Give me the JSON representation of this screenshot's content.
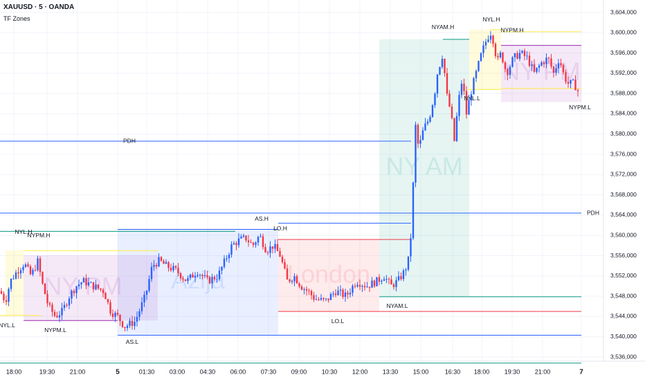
{
  "header": {
    "title": "XAUUSD · 5 · OANDA",
    "indicator": "TF Zones"
  },
  "chart_data": {
    "type": "candlestick",
    "symbol": "XAUUSD",
    "interval": "5",
    "source": "OANDA",
    "ylim": [
      3534,
      3607
    ],
    "y_ticks": [
      "3,536,000",
      "3,540,000",
      "3,544,000",
      "3,548,000",
      "3,552,000",
      "3,556,000",
      "3,560,000",
      "3,564,000",
      "3,568,000",
      "3,572,000",
      "3,576,000",
      "3,580,000",
      "3,584,000",
      "3,588,000",
      "3,592,000",
      "3,596,000",
      "3,600,000",
      "3,604,000"
    ],
    "x_ticks": [
      "18:00",
      "19:30",
      "21:00",
      "5",
      "01:30",
      "03:00",
      "04:30",
      "06:00",
      "07:30",
      "09:00",
      "10:30",
      "12:00",
      "13:30",
      "15:00",
      "16:30",
      "18:00",
      "19:30",
      "21:00",
      "7"
    ],
    "bold_x_ticks": [
      "5",
      "7"
    ],
    "colors": {
      "up": "#2962ff",
      "down": "#f23645",
      "grid": "#f0f3fa",
      "axis_text": "#131722"
    },
    "price_path": [
      [
        0,
        3549
      ],
      [
        8,
        3547
      ],
      [
        15,
        3551
      ],
      [
        25,
        3553
      ],
      [
        35,
        3554.5
      ],
      [
        45,
        3552
      ],
      [
        55,
        3555
      ],
      [
        60,
        3551
      ],
      [
        70,
        3546
      ],
      [
        80,
        3544
      ],
      [
        90,
        3545
      ],
      [
        100,
        3548
      ],
      [
        110,
        3550
      ],
      [
        120,
        3551
      ],
      [
        135,
        3550
      ],
      [
        150,
        3549
      ],
      [
        160,
        3545
      ],
      [
        170,
        3544
      ],
      [
        180,
        3542
      ],
      [
        195,
        3543
      ],
      [
        210,
        3548
      ],
      [
        220,
        3554
      ],
      [
        230,
        3555
      ],
      [
        240,
        3554
      ],
      [
        255,
        3553
      ],
      [
        270,
        3551
      ],
      [
        285,
        3553
      ],
      [
        300,
        3551
      ],
      [
        315,
        3552
      ],
      [
        325,
        3555
      ],
      [
        335,
        3558
      ],
      [
        345,
        3559
      ],
      [
        355,
        3559.5
      ],
      [
        365,
        3558
      ],
      [
        375,
        3560
      ],
      [
        385,
        3557
      ],
      [
        395,
        3558
      ],
      [
        405,
        3556
      ],
      [
        415,
        3551
      ],
      [
        425,
        3552
      ],
      [
        435,
        3550
      ],
      [
        445,
        3549
      ],
      [
        455,
        3547.5
      ],
      [
        470,
        3547
      ],
      [
        485,
        3549
      ],
      [
        500,
        3548
      ],
      [
        515,
        3551
      ],
      [
        530,
        3550
      ],
      [
        545,
        3551
      ],
      [
        555,
        3552
      ],
      [
        565,
        3550
      ],
      [
        575,
        3551
      ],
      [
        585,
        3553
      ],
      [
        592,
        3556
      ],
      [
        596,
        3566
      ],
      [
        600,
        3582
      ],
      [
        605,
        3577
      ],
      [
        612,
        3581
      ],
      [
        620,
        3583
      ],
      [
        628,
        3588
      ],
      [
        632,
        3592
      ],
      [
        640,
        3596
      ],
      [
        645,
        3588
      ],
      [
        652,
        3584
      ],
      [
        656,
        3578
      ],
      [
        662,
        3586
      ],
      [
        668,
        3591
      ],
      [
        674,
        3584
      ],
      [
        680,
        3588
      ],
      [
        688,
        3592
      ],
      [
        696,
        3596
      ],
      [
        704,
        3599
      ],
      [
        709,
        3600
      ],
      [
        714,
        3598
      ],
      [
        718,
        3594
      ],
      [
        724,
        3596
      ],
      [
        732,
        3592
      ],
      [
        742,
        3595
      ],
      [
        752,
        3596
      ],
      [
        762,
        3595
      ],
      [
        772,
        3592
      ],
      [
        782,
        3594
      ],
      [
        792,
        3595
      ],
      [
        800,
        3592
      ],
      [
        808,
        3595
      ],
      [
        814,
        3592
      ],
      [
        820,
        3590
      ],
      [
        828,
        3590
      ],
      [
        834,
        3589
      ],
      [
        838,
        3587
      ]
    ],
    "sessions": [
      {
        "id": "asia",
        "label": "Azija",
        "x": [
          170,
          402
        ],
        "y": [
          3540.3,
          3561.2
        ],
        "color": "#2962ff"
      },
      {
        "id": "london",
        "label": "London",
        "x": [
          402,
          548
        ],
        "y": [
          3545,
          3559.2
        ],
        "color": "#f23645"
      },
      {
        "id": "nyam",
        "label": "NY AM",
        "x": [
          548,
          678
        ],
        "y": [
          3547.9,
          3598.7
        ],
        "color": "#089981"
      },
      {
        "id": "nyl-prev",
        "label": "",
        "x": [
          8,
          34
        ],
        "y": [
          3544.2,
          3557
        ],
        "color": "#ffeb3b"
      },
      {
        "id": "nypm-prev",
        "label": "NY PM",
        "x": [
          34,
          228
        ],
        "y": [
          3543.2,
          3556.1
        ],
        "color": "#9c27b0"
      },
      {
        "id": "nyl",
        "label": "",
        "x": [
          678,
          724
        ],
        "y": [
          3588.8,
          3600.6
        ],
        "color": "#ffeb3b"
      },
      {
        "id": "nypm",
        "label": "NY PM",
        "x": [
          724,
          840
        ],
        "y": [
          3586.3,
          3597.5
        ],
        "color": "#9c27b0"
      }
    ],
    "levels": [
      {
        "id": "pdh-1",
        "label": "PDH",
        "x": [
          0,
          594
        ],
        "y": 3578.6,
        "color": "#2962ff"
      },
      {
        "id": "pdh-2",
        "label": "PDH",
        "x": [
          0,
          840
        ],
        "y": 3564.4,
        "color": "#2962ff"
      },
      {
        "id": "as-h",
        "label": "AS.H",
        "x": [
          170,
          402
        ],
        "y": 3561.2,
        "color": "#2962ff"
      },
      {
        "id": "as-l",
        "label": "AS.L",
        "x": [
          170,
          840
        ],
        "y": 3540.3,
        "color": "#2962ff"
      },
      {
        "id": "lo-h",
        "label": "LO.H",
        "x": [
          402,
          594
        ],
        "y": 3562.4,
        "color": "#2962ff"
      },
      {
        "id": "lo-l",
        "label": "LO.L",
        "x": [
          402,
          840
        ],
        "y": 3545,
        "color": "#f23645"
      },
      {
        "id": "lo-h-line",
        "label": "",
        "x": [
          402,
          594
        ],
        "y": 3559.2,
        "color": "#f23645"
      },
      {
        "id": "nyam-h",
        "label": "NYAM.H",
        "x": [
          640,
          678
        ],
        "y": 3598.7,
        "color": "#089981"
      },
      {
        "id": "nyam-l",
        "label": "NYAM.L",
        "x": [
          548,
          840
        ],
        "y": 3547.9,
        "color": "#089981"
      },
      {
        "id": "nyl-h",
        "label": "NYL.H",
        "x": [
          0,
          340
        ],
        "y": 3560.8,
        "color": "#089981"
      },
      {
        "id": "nyl-l",
        "label": "NYL.L",
        "x": [
          0,
          840
        ],
        "y": 3534.8,
        "color": "#089981"
      },
      {
        "id": "nyl-h-2",
        "label": "NYL.H",
        "x": [
          708,
          724
        ],
        "y": 3600.6,
        "color": "#ffeb3b"
      },
      {
        "id": "nyl-l-2",
        "label": "NYL.L",
        "x": [
          676,
          724
        ],
        "y": 3588.8,
        "color": "#ffeb3b"
      },
      {
        "id": "nypm-h-2",
        "label": "NYPM.H",
        "x": [
          724,
          840
        ],
        "y": 3600.2,
        "color": "#ffeb3b"
      },
      {
        "id": "nypm-hl",
        "label": "",
        "x": [
          724,
          840
        ],
        "y": 3597.5,
        "color": "#9c27b0"
      },
      {
        "id": "nypm-l-2",
        "label": "NYPM.L",
        "x": [
          724,
          840
        ],
        "y": 3589,
        "color": "#ffeb3b"
      },
      {
        "id": "nypm-h-1",
        "label": "NYPM.H",
        "x": [
          34,
          228
        ],
        "y": 3557,
        "color": "#ffeb3b"
      },
      {
        "id": "nypm-l-1",
        "label": "NYPM.L",
        "x": [
          34,
          170
        ],
        "y": 3543.2,
        "color": "#9c27b0"
      },
      {
        "id": "nyl-l-1",
        "label": "",
        "x": [
          0,
          60
        ],
        "y": 3544.2,
        "color": "#ffeb3b"
      }
    ],
    "labels": [
      {
        "text": "PDH",
        "x": 187,
        "y": 3578.6
      },
      {
        "text": "PDH",
        "x": 857,
        "y": 3564.4
      },
      {
        "text": "AS.H",
        "x": 378,
        "y": 3563.2
      },
      {
        "text": "AS.L",
        "x": 191,
        "y": 3538.9
      },
      {
        "text": "LO.H",
        "x": 405,
        "y": 3561.3
      },
      {
        "text": "LO.L",
        "x": 488,
        "y": 3543.0
      },
      {
        "text": "NYAM.H",
        "x": 640,
        "y": 3601.0
      },
      {
        "text": "NYAM.L",
        "x": 574,
        "y": 3546.0
      },
      {
        "text": "NYL.H",
        "x": 34,
        "y": 3560.6
      },
      {
        "text": "NYPM.H",
        "x": 56,
        "y": 3559.9
      },
      {
        "text": "NYL.L",
        "x": 10,
        "y": 3542.2
      },
      {
        "text": "NYPM.L",
        "x": 80,
        "y": 3541.2
      },
      {
        "text": "NYL.H",
        "x": 710,
        "y": 3602.5
      },
      {
        "text": "NYPM.H",
        "x": 740,
        "y": 3600.4
      },
      {
        "text": "NYL.L",
        "x": 682,
        "y": 3587.0
      },
      {
        "text": "NYPM.L",
        "x": 838,
        "y": 3585.2
      }
    ],
    "watermarks": [
      {
        "text": "Azija",
        "x": 286,
        "y": 3550.8,
        "color": "#2962ff"
      },
      {
        "text": "NY AM",
        "x": 613,
        "y": 3573.3,
        "color": "#089981"
      },
      {
        "text": "NY PM",
        "x": 782,
        "y": 3592.0,
        "color": "#9c27b0"
      },
      {
        "text": "NY PM",
        "x": 120,
        "y": 3549.6,
        "color": "#9c27b0"
      },
      {
        "text": "London",
        "x": 475,
        "y": 3552.0,
        "color": "#f23645"
      }
    ]
  }
}
